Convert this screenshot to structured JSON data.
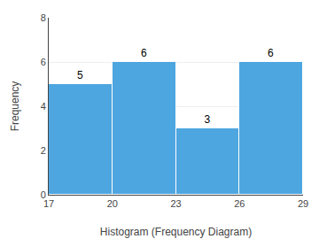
{
  "chart_data": {
    "type": "histogram",
    "bins": [
      17,
      20,
      23,
      26,
      29
    ],
    "values": [
      5,
      6,
      3,
      6
    ],
    "color": "#4da6e0",
    "xlabel": "Histogram (Frequency Diagram)",
    "ylabel": "Frequency",
    "xlim": [
      17,
      29
    ],
    "xticks": [
      17,
      20,
      23,
      26,
      29
    ],
    "ylim": [
      0,
      8
    ],
    "yticks": [
      0,
      2,
      4,
      6,
      8
    ],
    "grid": true,
    "data_labels": true
  }
}
